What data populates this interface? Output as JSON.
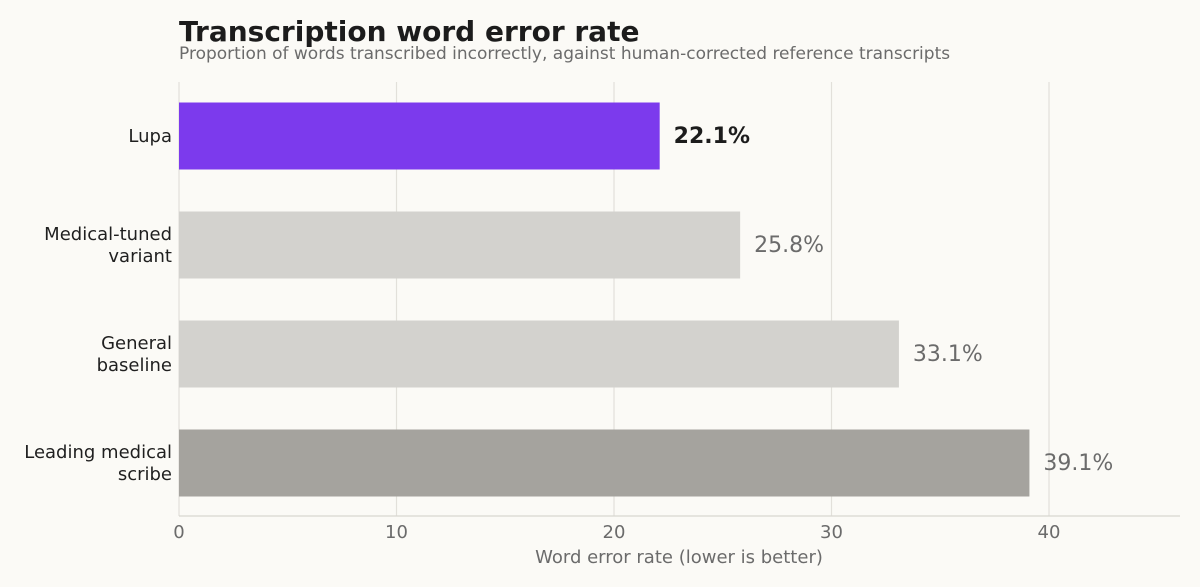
{
  "chart_data": {
    "type": "bar",
    "orientation": "horizontal",
    "title": "Transcription word error rate",
    "subtitle": "Proportion of words transcribed incorrectly, against human-corrected reference transcripts",
    "xlabel": "Word error rate (lower is better)",
    "ylabel": "",
    "xlim": [
      0,
      46
    ],
    "xticks": [
      0,
      10,
      20,
      30,
      40
    ],
    "grid": "vertical",
    "legend": "none",
    "categories": [
      {
        "label_lines": [
          "Lupa"
        ],
        "value": 22.1,
        "label": "22.1%",
        "color": "#7c3aed",
        "highlight": true
      },
      {
        "label_lines": [
          "Medical-tuned",
          "variant"
        ],
        "value": 25.8,
        "label": "25.8%",
        "color": "#d3d2ce",
        "highlight": false
      },
      {
        "label_lines": [
          "General",
          "baseline"
        ],
        "value": 33.1,
        "label": "33.1%",
        "color": "#d3d2ce",
        "highlight": false
      },
      {
        "label_lines": [
          "Leading medical",
          "scribe"
        ],
        "value": 39.1,
        "label": "39.1%",
        "color": "#a5a39e",
        "highlight": false
      }
    ]
  }
}
